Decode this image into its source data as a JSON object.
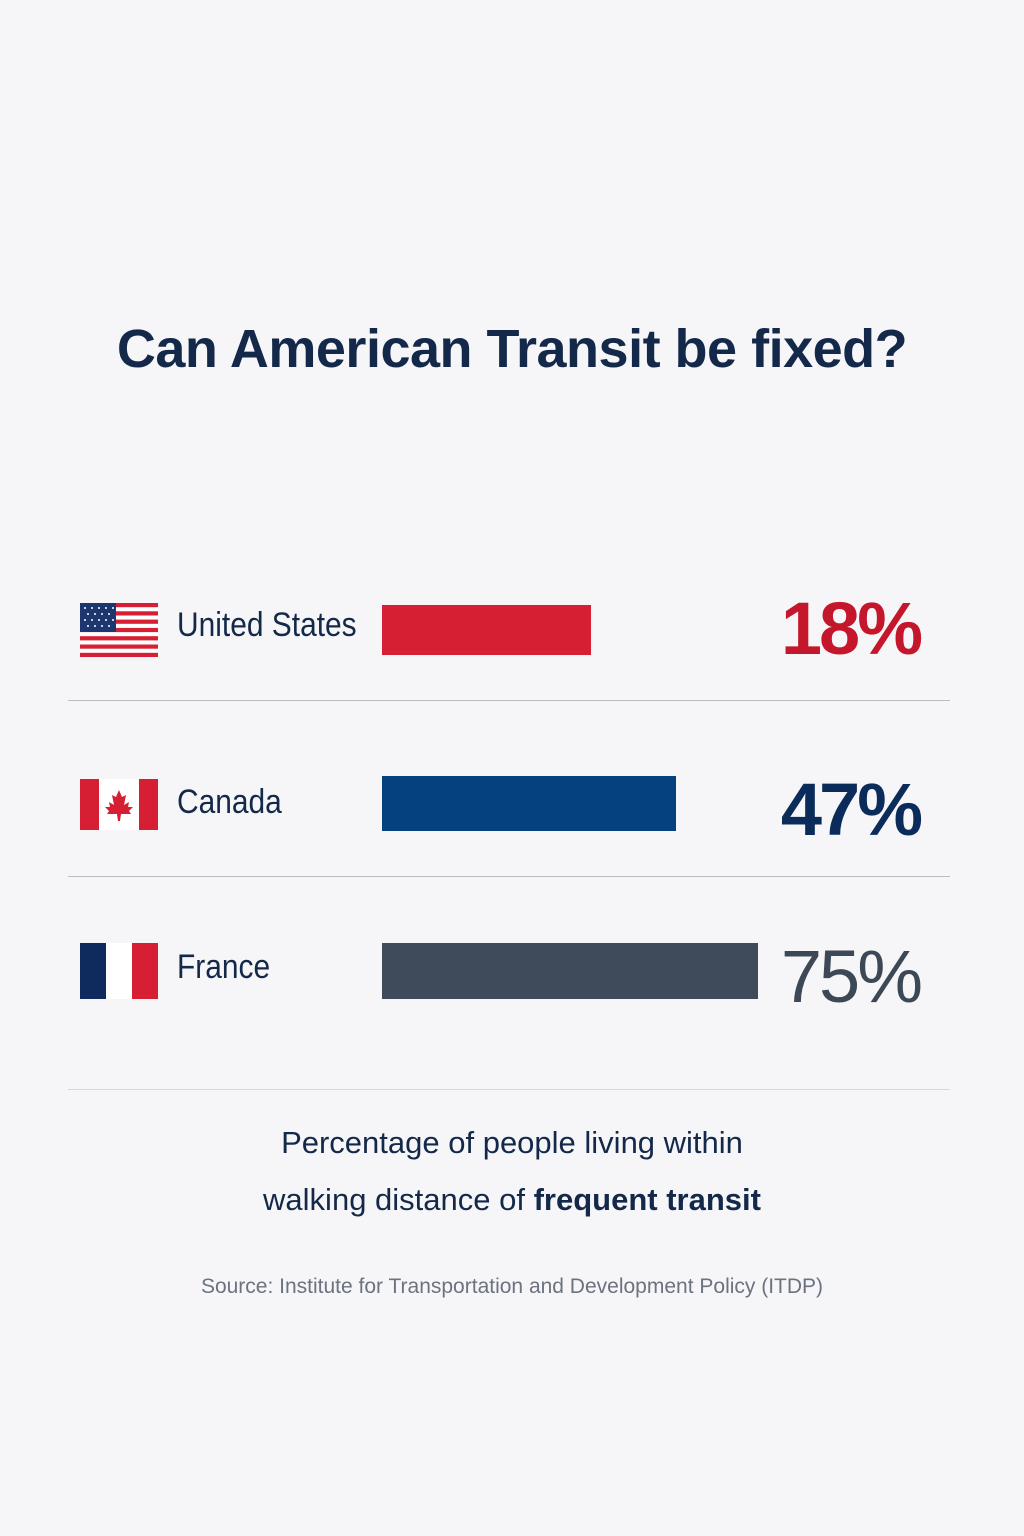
{
  "chart_data": {
    "type": "bar",
    "orientation": "horizontal",
    "title": "Can American Transit be fixed?",
    "categories": [
      "United States",
      "Canada",
      "France"
    ],
    "values": [
      18,
      47,
      75
    ],
    "value_labels": [
      "18%",
      "47%",
      "75%"
    ],
    "colors": [
      "#d71f33",
      "#05417f",
      "#3f4b5b"
    ],
    "label_colors": [
      "#c4172c",
      "#0b2c5a",
      "#3d4857"
    ],
    "flags": [
      "us-flag-icon",
      "canada-flag-icon",
      "france-flag-icon"
    ],
    "caption_line1": "Percentage of people living within",
    "caption_line2_plain": "walking distance of ",
    "caption_line2_bold": "frequent transit",
    "source": "Source: Institute for Transportation and Development Policy (ITDP)"
  }
}
